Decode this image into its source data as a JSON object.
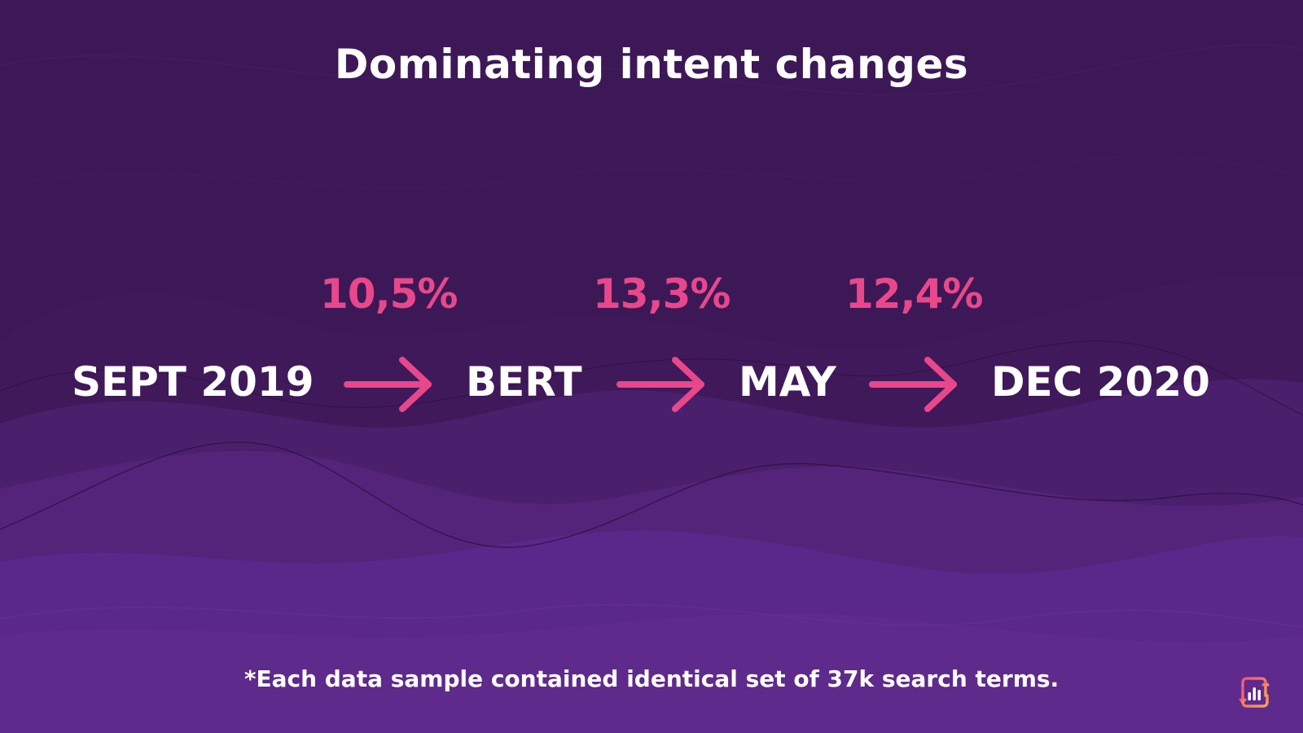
{
  "title": "Dominating intent changes",
  "timeline": {
    "nodes": [
      {
        "label": "SEPT 2019"
      },
      {
        "label": "BERT"
      },
      {
        "label": "MAY"
      },
      {
        "label": "DEC 2020"
      }
    ],
    "transitions": [
      {
        "value": "10,5%"
      },
      {
        "value": "13,3%"
      },
      {
        "value": "12,4%"
      }
    ]
  },
  "footnote": "*Each data sample contained identical set of 37k search terms.",
  "icons": {
    "arrow": "arrow-right-icon",
    "logo": "analytics-logo-icon"
  },
  "colors": {
    "background_top": "#3d1856",
    "background_bottom": "#5e2a8c",
    "accent": "#e8488b",
    "text": "#ffffff"
  }
}
